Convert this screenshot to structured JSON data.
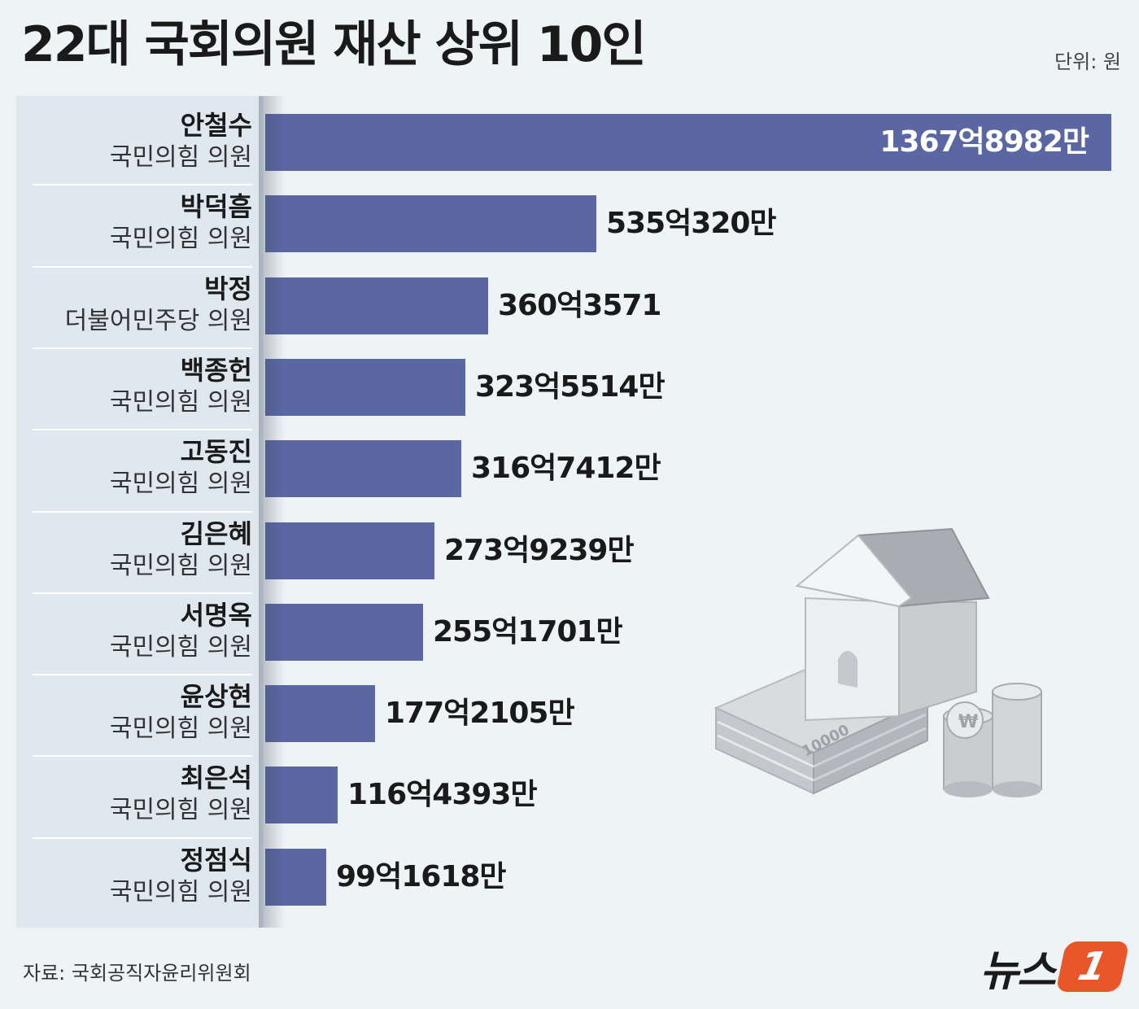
{
  "header": {
    "title": "22대 국회의원 재산 상위 10인",
    "unit": "단위: 원"
  },
  "footer": {
    "source": "자료: 국회공직자윤리위원회",
    "logo_text": "뉴스",
    "logo_badge": "1"
  },
  "colors": {
    "bar": "#5b67a3",
    "background": "#eef3f6",
    "label_panel": "#dfe8ee",
    "logo": "#e8562a"
  },
  "chart_data": {
    "type": "bar",
    "orientation": "horizontal",
    "title": "22대 국회의원 재산 상위 10인",
    "unit": "원 (억)",
    "xlim": [
      0,
      1367.8982
    ],
    "categories": [
      "안철수",
      "박덕흠",
      "박정",
      "백종헌",
      "고동진",
      "김은혜",
      "서명옥",
      "윤상현",
      "최은석",
      "정점식"
    ],
    "parties": [
      "국민의힘 의원",
      "국민의힘 의원",
      "더불어민주당 의원",
      "국민의힘 의원",
      "국민의힘 의원",
      "국민의힘 의원",
      "국민의힘 의원",
      "국민의힘 의원",
      "국민의힘 의원",
      "국민의힘 의원"
    ],
    "values": [
      1367.8982,
      535.032,
      360.3571,
      323.5514,
      316.7412,
      273.9239,
      255.1701,
      177.2105,
      116.4393,
      99.1618
    ],
    "value_labels": [
      "1367억8982만",
      "535억320만",
      "360억3571",
      "323억5514만",
      "316억7412만",
      "273억9239만",
      "255억1701만",
      "177억2105만",
      "116억4393만",
      "99억1618만"
    ]
  }
}
